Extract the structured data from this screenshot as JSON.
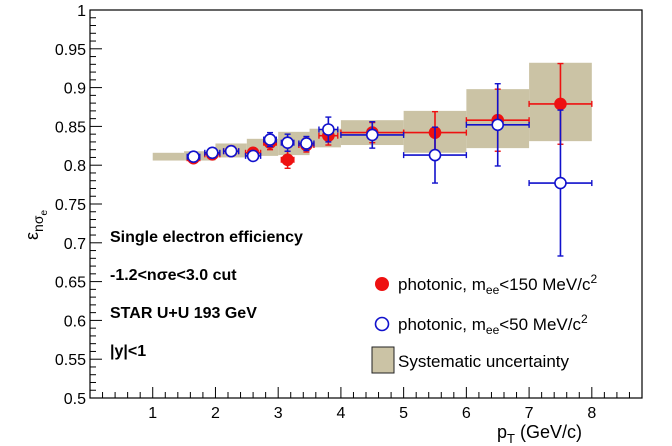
{
  "chart_data": {
    "type": "scatter",
    "xlabel": "p_T (GeV/c)",
    "ylabel": "ε_nσe",
    "xlim": [
      0,
      8.8
    ],
    "ylim": [
      0.5,
      1.0
    ],
    "x_ticks": [
      1,
      2,
      3,
      4,
      5,
      6,
      7,
      8
    ],
    "x_tick_labels": [
      "1",
      "2",
      "3",
      "4",
      "5",
      "6",
      "7",
      "8"
    ],
    "y_ticks": [
      0.5,
      0.55,
      0.6,
      0.65,
      0.7,
      0.75,
      0.8,
      0.85,
      0.9,
      0.95,
      1.0
    ],
    "y_tick_labels": [
      "0.5",
      "0.55",
      "0.6",
      "0.65",
      "0.7",
      "0.75",
      "0.8",
      "0.85",
      "0.9",
      "0.95",
      "1"
    ],
    "annotations": [
      "Single electron efficiency",
      "-1.2<nσe<3.0 cut",
      "STAR U+U 193 GeV",
      "|y|<1"
    ],
    "legend": [
      {
        "label": "photonic, m_ee<150 MeV/c^2",
        "marker": "filled-circle"
      },
      {
        "label": "photonic, m_ee<50 MeV/c^2",
        "marker": "open-circle"
      },
      {
        "label": "Systematic uncertainty",
        "marker": "box"
      }
    ],
    "colors": {
      "series_150": "#ee1111",
      "series_50": "#1111cc",
      "systematic": "#cbc3a5",
      "systematic_edge": "#444444"
    },
    "series": [
      {
        "name": "photonic, m_ee<150 MeV/c^2",
        "style": "filled",
        "points": [
          {
            "x": 1.65,
            "y": 0.809,
            "xerr": 0.1,
            "yerr": 0.004
          },
          {
            "x": 1.95,
            "y": 0.814,
            "xerr": 0.12,
            "yerr": 0.005
          },
          {
            "x": 2.25,
            "y": 0.818,
            "xerr": 0.12,
            "yerr": 0.005
          },
          {
            "x": 2.6,
            "y": 0.816,
            "xerr": 0.12,
            "yerr": 0.006
          },
          {
            "x": 2.87,
            "y": 0.829,
            "xerr": 0.1,
            "yerr": 0.009
          },
          {
            "x": 3.15,
            "y": 0.807,
            "xerr": 0.1,
            "yerr": 0.011
          },
          {
            "x": 3.45,
            "y": 0.826,
            "xerr": 0.12,
            "yerr": 0.009
          },
          {
            "x": 3.8,
            "y": 0.838,
            "xerr": 0.15,
            "yerr": 0.012
          },
          {
            "x": 4.5,
            "y": 0.842,
            "xerr": 0.5,
            "yerr": 0.013
          },
          {
            "x": 5.5,
            "y": 0.842,
            "xerr": 0.5,
            "yerr": 0.027
          },
          {
            "x": 6.5,
            "y": 0.858,
            "xerr": 0.5,
            "yerr": 0.04
          },
          {
            "x": 7.5,
            "y": 0.879,
            "xerr": 0.5,
            "yerr": 0.052
          }
        ]
      },
      {
        "name": "photonic, m_ee<50 MeV/c^2",
        "style": "open",
        "points": [
          {
            "x": 1.65,
            "y": 0.811,
            "xerr": 0.1,
            "yerr": 0.004
          },
          {
            "x": 1.95,
            "y": 0.816,
            "xerr": 0.12,
            "yerr": 0.005
          },
          {
            "x": 2.25,
            "y": 0.818,
            "xerr": 0.12,
            "yerr": 0.005
          },
          {
            "x": 2.6,
            "y": 0.812,
            "xerr": 0.12,
            "yerr": 0.006
          },
          {
            "x": 2.87,
            "y": 0.833,
            "xerr": 0.1,
            "yerr": 0.009
          },
          {
            "x": 3.15,
            "y": 0.829,
            "xerr": 0.1,
            "yerr": 0.011
          },
          {
            "x": 3.45,
            "y": 0.828,
            "xerr": 0.12,
            "yerr": 0.009
          },
          {
            "x": 3.8,
            "y": 0.846,
            "xerr": 0.15,
            "yerr": 0.016
          },
          {
            "x": 4.5,
            "y": 0.839,
            "xerr": 0.5,
            "yerr": 0.017
          },
          {
            "x": 5.5,
            "y": 0.813,
            "xerr": 0.5,
            "yerr": 0.036
          },
          {
            "x": 6.5,
            "y": 0.852,
            "xerr": 0.5,
            "yerr": 0.053
          },
          {
            "x": 7.5,
            "y": 0.777,
            "xerr": 0.5,
            "yerr": 0.094
          }
        ]
      }
    ],
    "systematic_boxes": [
      {
        "x0": 1.0,
        "x1": 1.5,
        "y0": 0.806,
        "y1": 0.816
      },
      {
        "x0": 1.5,
        "x1": 2.0,
        "y0": 0.806,
        "y1": 0.818
      },
      {
        "x0": 2.0,
        "x1": 2.5,
        "y0": 0.81,
        "y1": 0.828
      },
      {
        "x0": 2.5,
        "x1": 3.0,
        "y0": 0.812,
        "y1": 0.834
      },
      {
        "x0": 3.0,
        "x1": 3.5,
        "y0": 0.813,
        "y1": 0.843
      },
      {
        "x0": 3.5,
        "x1": 4.0,
        "y0": 0.823,
        "y1": 0.847
      },
      {
        "x0": 4.0,
        "x1": 5.0,
        "y0": 0.826,
        "y1": 0.858
      },
      {
        "x0": 5.0,
        "x1": 6.0,
        "y0": 0.816,
        "y1": 0.87
      },
      {
        "x0": 6.0,
        "x1": 7.0,
        "y0": 0.822,
        "y1": 0.898
      },
      {
        "x0": 7.0,
        "x1": 8.0,
        "y0": 0.831,
        "y1": 0.932
      }
    ]
  }
}
